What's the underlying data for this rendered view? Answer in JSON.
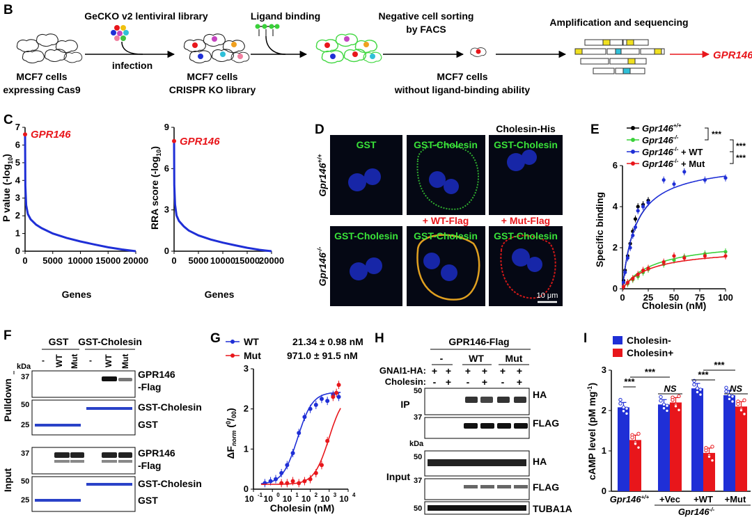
{
  "panels": {
    "B": "B",
    "C": "C",
    "D": "D",
    "E": "E",
    "F": "F",
    "G": "G",
    "H": "H",
    "I": "I"
  },
  "panel_b": {
    "library": "GeCKO v2 lentiviral library",
    "infection": "infection",
    "ligand_binding": "Ligand binding",
    "sorting_1": "Negative cell sorting",
    "sorting_2": "by FACS",
    "amplification": "Amplification and sequencing",
    "cells1_1": "MCF7 cells",
    "cells1_2": "expressing Cas9",
    "cells2_1": "MCF7 cells",
    "cells2_2": "CRISPR KO library",
    "cells3_1": "MCF7 cells",
    "cells3_2": "without ligand-binding ability",
    "result": "GPR146"
  },
  "panel_c": {
    "hit": "GPR146",
    "left_ylabel": "P value (-log10)",
    "right_ylabel": "RRA score (-log10)",
    "xlabel": "Genes"
  },
  "panel_d": {
    "row1": "Gpr146+/+",
    "row2": "Gpr146-/-",
    "gst": "GST",
    "gst_cholesin": "GST-Cholesin",
    "cholesin_his": "Cholesin-His",
    "wt_flag": "+ WT-Flag",
    "mut_flag": "+ Mut-Flag",
    "scale": "10 μm"
  },
  "panel_f": {
    "gst": "GST",
    "gst_cholesin": "GST-Cholesin",
    "dash": "-",
    "wt": "WT",
    "mut": "Mut",
    "kda": "kDa",
    "pulldown": "Pulldown",
    "input": "Input",
    "gpr146_1": "GPR146",
    "gpr146_2": "-Flag",
    "gst_cholesin_band": "GST-Cholesin",
    "gst_band": "GST",
    "m37": "37",
    "m50": "50",
    "m25": "25"
  },
  "panel_h": {
    "header": "GPR146-Flag",
    "dash": "-",
    "wt": "WT",
    "mut": "Mut",
    "gnai": "GNAI1-HA:",
    "cholesin": "Cholesin:",
    "ip": "IP",
    "input": "Input",
    "kda": "kDa",
    "ha": "HA",
    "flag": "FLAG",
    "tuba": "TUBA1A",
    "m50": "50",
    "m37": "37"
  },
  "panel_i": {
    "ylabel": "cAMP level (pM mg-1)",
    "leg_minus": "Cholesin-",
    "leg_plus": "Cholesin+",
    "ns": "NS",
    "stars": "***",
    "x0": "Gpr146+/+",
    "x1": "+Vec",
    "x2": "+WT",
    "x3": "+Mut",
    "xgroup": "Gpr146-/-"
  },
  "colors": {
    "red": "#e8161b",
    "blue": "#1f2fd6",
    "green": "#3ad13a",
    "black": "#000000"
  },
  "chart_data": [
    {
      "type": "line",
      "panel": "C-left",
      "title": "",
      "xlabel": "Genes",
      "ylabel": "P value (-log10)",
      "xlim": [
        0,
        20000
      ],
      "ylim": [
        0,
        7
      ],
      "xticks": [
        0,
        5000,
        10000,
        15000,
        20000
      ],
      "yticks": [
        0,
        1,
        2,
        3,
        4,
        5,
        6,
        7
      ],
      "highlight": {
        "label": "GPR146",
        "x": 1,
        "y": 6.6
      },
      "x": [
        1,
        50,
        200,
        500,
        1000,
        2000,
        3000,
        5000,
        7500,
        10000,
        12500,
        15000,
        17500,
        20000
      ],
      "y": [
        6.6,
        3.7,
        2.6,
        2.1,
        1.8,
        1.5,
        1.3,
        1.0,
        0.75,
        0.55,
        0.38,
        0.22,
        0.1,
        0.0
      ]
    },
    {
      "type": "line",
      "panel": "C-right",
      "title": "",
      "xlabel": "Genes",
      "ylabel": "RRA score (-log10)",
      "xlim": [
        0,
        20000
      ],
      "ylim": [
        0,
        9
      ],
      "xticks": [
        0,
        5000,
        10000,
        15000,
        20000
      ],
      "yticks": [
        0,
        3,
        6,
        9
      ],
      "highlight": {
        "label": "GPR146",
        "x": 1,
        "y": 8.0
      },
      "x": [
        1,
        50,
        200,
        500,
        1000,
        2000,
        3000,
        5000,
        7500,
        10000,
        12500,
        15000,
        17500,
        20000
      ],
      "y": [
        8.0,
        4.8,
        3.4,
        2.6,
        2.2,
        1.8,
        1.5,
        1.15,
        0.85,
        0.62,
        0.43,
        0.25,
        0.1,
        0.0
      ]
    },
    {
      "type": "scatter",
      "panel": "E",
      "xlabel": "Cholesin (nM)",
      "ylabel": "Specific binding",
      "xlim": [
        0,
        100
      ],
      "ylim": [
        0,
        6
      ],
      "xticks": [
        0,
        25,
        50,
        75,
        100
      ],
      "yticks": [
        0,
        2,
        4,
        6
      ],
      "significance": "***",
      "series": [
        {
          "name": "Gpr146+/+",
          "color": "#000000",
          "x": [
            1,
            2.5,
            5,
            7.5,
            10,
            12.5,
            15,
            20,
            25
          ],
          "y": [
            0.4,
            0.9,
            1.6,
            2.2,
            2.8,
            3.4,
            4.0,
            4.1,
            4.3
          ]
        },
        {
          "name": "Gpr146-/-",
          "color": "#3ad13a",
          "x": [
            1,
            5,
            10,
            15,
            20,
            25,
            40,
            50,
            60,
            80,
            100
          ],
          "y": [
            0.1,
            0.25,
            0.45,
            0.6,
            0.8,
            0.95,
            1.2,
            1.4,
            1.55,
            1.7,
            1.8
          ]
        },
        {
          "name": "Gpr146-/- + WT",
          "color": "#1f2fd6",
          "x": [
            1,
            2.5,
            5,
            7.5,
            10,
            12.5,
            15,
            20,
            25,
            40,
            50,
            60,
            80,
            100
          ],
          "y": [
            0.3,
            0.8,
            1.5,
            2.0,
            2.6,
            3.0,
            3.8,
            4.0,
            4.2,
            5.3,
            5.1,
            5.7,
            5.3,
            5.4
          ]
        },
        {
          "name": "Gpr146-/- + Mut",
          "color": "#e8161b",
          "x": [
            1,
            5,
            10,
            15,
            20,
            25,
            40,
            50,
            60,
            80,
            100
          ],
          "y": [
            0.1,
            0.3,
            0.5,
            0.7,
            0.9,
            1.0,
            1.3,
            1.6,
            1.5,
            1.6,
            1.6
          ]
        }
      ]
    },
    {
      "type": "scatter",
      "panel": "G",
      "xlabel": "Cholesin (nM)",
      "ylabel": "ΔFnorm (0/00)",
      "xscale": "log",
      "xlim": [
        0.1,
        10000
      ],
      "ylim": [
        0,
        3
      ],
      "yticks": [
        0,
        1,
        2,
        3
      ],
      "xticks_exp": [
        -1,
        0,
        1,
        2,
        3,
        4
      ],
      "series": [
        {
          "name": "WT",
          "label": "21.34 ± 0.98 nM",
          "color": "#1f2fd6",
          "x": [
            0.4,
            0.8,
            1.5,
            3,
            6,
            12,
            25,
            50,
            100,
            200,
            400,
            800,
            1600,
            3200
          ],
          "y": [
            0.15,
            0.2,
            0.25,
            0.4,
            0.6,
            0.9,
            1.4,
            1.8,
            2.0,
            2.1,
            2.25,
            2.2,
            2.35,
            2.3
          ]
        },
        {
          "name": "Mut",
          "label": "971.0 ± 91.5 nM",
          "color": "#e8161b",
          "x": [
            3,
            6,
            12,
            25,
            50,
            100,
            200,
            400,
            800,
            1600,
            2400,
            3200
          ],
          "y": [
            0.15,
            0.15,
            0.2,
            0.15,
            0.2,
            0.25,
            0.4,
            0.6,
            1.2,
            2.3,
            2.4,
            2.6
          ]
        }
      ]
    },
    {
      "type": "bar",
      "panel": "I",
      "ylabel": "cAMP level (pM mg-1)",
      "ylim": [
        0,
        3
      ],
      "yticks": [
        0,
        1,
        2,
        3
      ],
      "categories": [
        "Gpr146+/+",
        "+Vec",
        "+WT",
        "+Mut"
      ],
      "series": [
        {
          "name": "Cholesin-",
          "color": "#1f2fd6",
          "values": [
            2.08,
            2.15,
            2.55,
            2.38
          ]
        },
        {
          "name": "Cholesin+",
          "color": "#e8161b",
          "values": [
            1.27,
            2.2,
            0.95,
            2.1
          ]
        }
      ],
      "annotations": [
        "***",
        "***",
        "NS",
        "***",
        "NS",
        "***"
      ]
    }
  ]
}
